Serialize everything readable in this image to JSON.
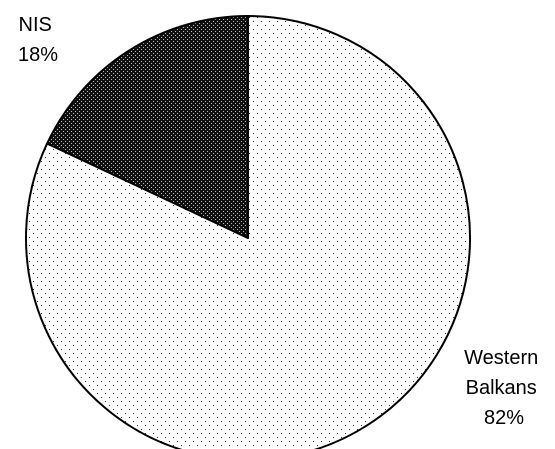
{
  "chart_data": {
    "type": "pie",
    "title": "",
    "slices": [
      {
        "label_lines": [
          "Western",
          "Balkans"
        ],
        "pct_label": "82%",
        "value": 82,
        "pattern": "light-dots"
      },
      {
        "label_lines": [
          "NIS"
        ],
        "pct_label": "18%",
        "value": 18,
        "pattern": "dense-dark-dots"
      }
    ],
    "start_angle": "12 o'clock, clockwise",
    "legend": "none",
    "colors": {
      "outline": "#000000",
      "light_fill": "#ffffff",
      "light_dots": "#000000",
      "dark_fill": "#111111",
      "dark_dots": "#ffffff"
    }
  }
}
